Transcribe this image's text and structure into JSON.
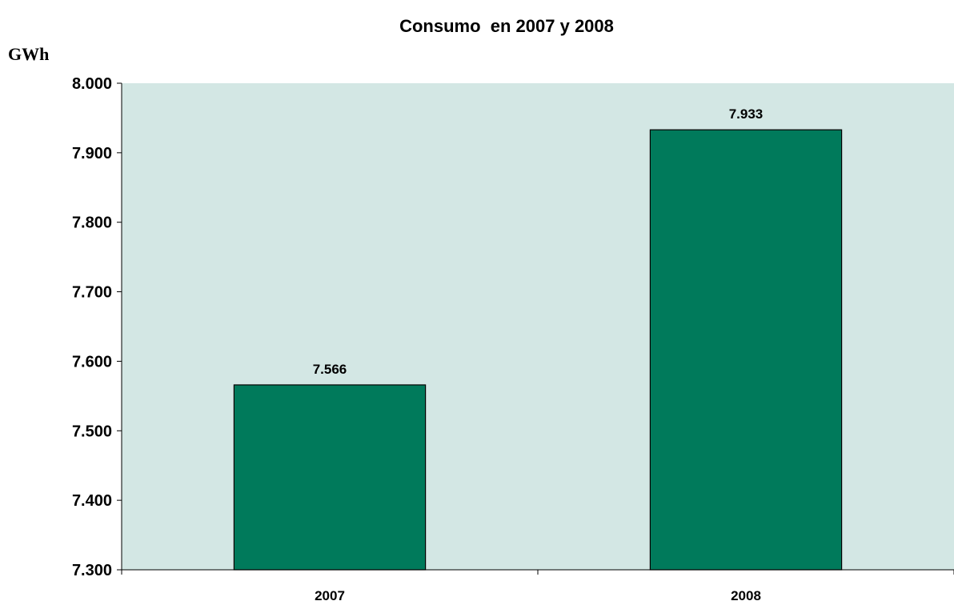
{
  "chart_data": {
    "type": "bar",
    "title": "Consumo  en 2007 y 2008",
    "xlabel": "",
    "ylabel": "GWh",
    "categories": [
      "2007",
      "2008"
    ],
    "values": [
      7566,
      7933
    ],
    "data_labels": [
      "7.566",
      "7.933"
    ],
    "ylim": [
      7300,
      8000
    ],
    "yticks": [
      7300,
      7400,
      7500,
      7600,
      7700,
      7800,
      7900,
      8000
    ],
    "ytick_labels": [
      "7.300",
      "7.400",
      "7.500",
      "7.600",
      "7.700",
      "7.800",
      "7.900",
      "8.000"
    ],
    "grid": false,
    "legend": "none",
    "colors": {
      "plot_background": "#d3e7e4",
      "bar_fill": "#007a5b",
      "bar_stroke": "#000000"
    }
  }
}
